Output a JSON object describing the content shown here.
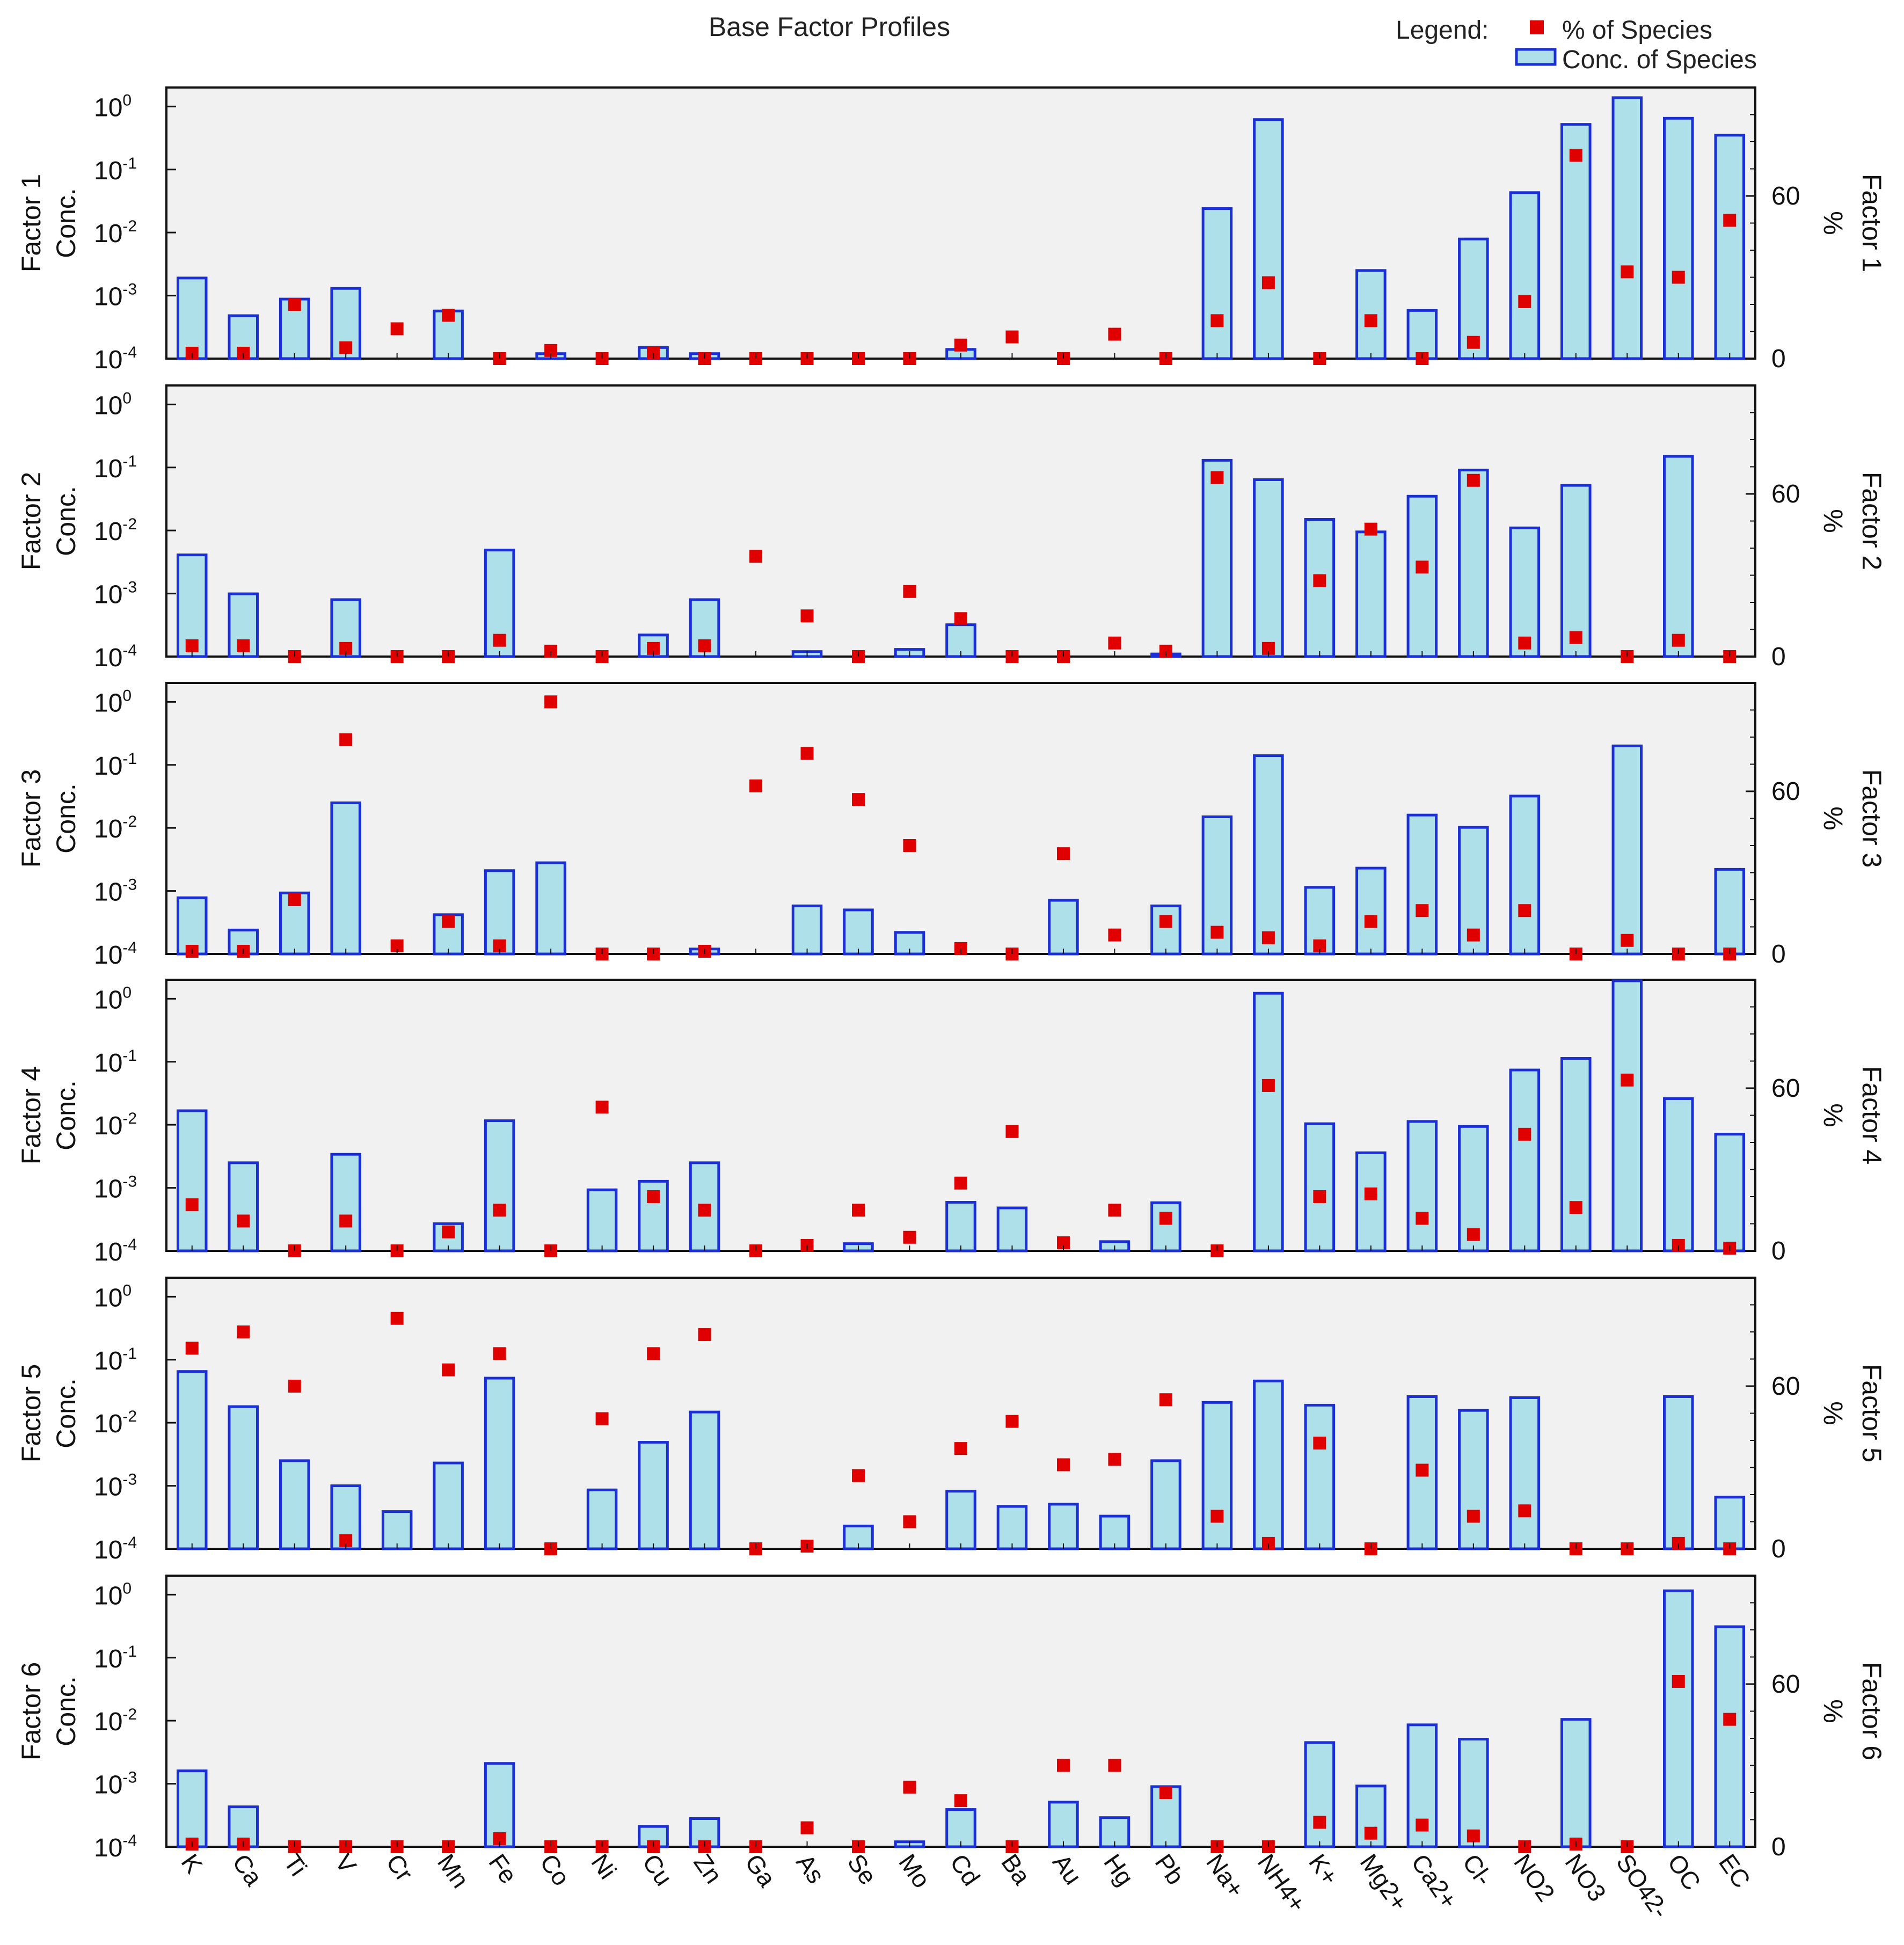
{
  "chart_data": {
    "type": "bar",
    "title": "Base Factor Profiles",
    "legend": {
      "title": "Legend:",
      "items": [
        {
          "label": "% of Species",
          "marker": "square",
          "color": "#e00000"
        },
        {
          "label": "Conc. of Species",
          "marker": "bar",
          "color": "#aee0ea",
          "edge": "#1a2fd6"
        }
      ],
      "position": "top-right"
    },
    "categories": [
      "K",
      "Ca",
      "Ti",
      "V",
      "Cr",
      "Mn",
      "Fe",
      "Co",
      "Ni",
      "Cu",
      "Zn",
      "Ga",
      "As",
      "Se",
      "Mo",
      "Cd",
      "Ba",
      "Au",
      "Hg",
      "Pb",
      "Na+",
      "NH4+",
      "K+",
      "Mg2+",
      "Ca2+",
      "Cl-",
      "NO2",
      "NO3",
      "SO42-",
      "OC",
      "EC"
    ],
    "left_axis": {
      "label": "Conc.",
      "scale": "log",
      "ylim": [
        0.0001,
        2.0
      ],
      "ticks": [
        {
          "base": "10",
          "exp": "-4"
        },
        {
          "base": "10",
          "exp": "-3"
        },
        {
          "base": "10",
          "exp": "-2"
        },
        {
          "base": "10",
          "exp": "-1"
        },
        {
          "base": "10",
          "exp": "0"
        }
      ]
    },
    "right_axis": {
      "label": "%",
      "ylim": [
        0,
        100
      ],
      "ticks": [
        "0",
        "60"
      ]
    },
    "panels": [
      {
        "name": "Factor 1",
        "conc": [
          0.0019,
          0.00048,
          0.00088,
          0.0013,
          null,
          0.00057,
          null,
          0.00012,
          null,
          0.00015,
          0.00012,
          null,
          null,
          null,
          null,
          0.00014,
          null,
          null,
          null,
          null,
          0.024,
          0.62,
          null,
          0.0025,
          0.00058,
          0.0079,
          0.043,
          0.52,
          1.38,
          0.65,
          0.35
        ],
        "pct": [
          2,
          2,
          20,
          4,
          11,
          16,
          0,
          3,
          0,
          2,
          0,
          0,
          0,
          0,
          0,
          5,
          8,
          0,
          9,
          0,
          14,
          28,
          0,
          14,
          0,
          6,
          21,
          75,
          32,
          30,
          51
        ]
      },
      {
        "name": "Factor 2",
        "conc": [
          0.0041,
          0.00099,
          null,
          0.0008,
          null,
          null,
          0.0049,
          null,
          null,
          0.00022,
          0.0008,
          null,
          0.00012,
          null,
          0.00013,
          0.00032,
          null,
          null,
          null,
          0.00011,
          0.13,
          0.064,
          0.015,
          0.0095,
          0.035,
          0.091,
          0.011,
          0.052,
          null,
          0.15,
          null
        ],
        "pct": [
          4,
          4,
          0,
          3,
          0,
          0,
          6,
          2,
          0,
          3,
          4,
          37,
          15,
          0,
          24,
          14,
          0,
          0,
          5,
          2,
          66,
          3,
          28,
          47,
          33,
          65,
          5,
          7,
          0,
          6,
          0
        ]
      },
      {
        "name": "Factor 3",
        "conc": [
          0.00078,
          0.00024,
          0.00093,
          0.025,
          null,
          0.00042,
          0.0021,
          0.0028,
          null,
          null,
          0.00012,
          null,
          0.00058,
          0.0005,
          0.00022,
          null,
          null,
          0.00071,
          null,
          0.00058,
          0.015,
          0.14,
          0.00114,
          0.0023,
          0.016,
          0.0102,
          0.032,
          null,
          0.2,
          null,
          0.0022
        ],
        "pct": [
          1,
          1,
          20,
          79,
          3,
          12,
          3,
          93,
          0,
          0,
          1,
          62,
          74,
          57,
          40,
          2,
          0,
          37,
          7,
          12,
          8,
          6,
          3,
          12,
          16,
          7,
          16,
          0,
          5,
          0,
          0
        ]
      },
      {
        "name": "Factor 4",
        "conc": [
          0.0167,
          0.0025,
          null,
          0.0034,
          null,
          0.00027,
          0.0116,
          null,
          0.00093,
          0.00127,
          0.0025,
          null,
          null,
          0.00013,
          null,
          0.00059,
          0.00048,
          null,
          0.00014,
          0.00058,
          null,
          1.22,
          0.0104,
          0.0036,
          0.0113,
          0.0094,
          0.074,
          0.113,
          2.35,
          0.026,
          0.0071
        ],
        "pct": [
          17,
          11,
          0,
          11,
          0,
          7,
          15,
          0,
          53,
          20,
          15,
          0,
          2,
          15,
          5,
          25,
          44,
          3,
          15,
          12,
          0,
          61,
          20,
          21,
          12,
          6,
          43,
          16,
          63,
          2,
          1
        ]
      },
      {
        "name": "Factor 5",
        "conc": [
          0.065,
          0.018,
          0.0025,
          0.001,
          0.00039,
          0.0023,
          0.051,
          null,
          0.00086,
          0.0049,
          0.0148,
          null,
          null,
          0.00023,
          null,
          0.00082,
          0.00047,
          0.00051,
          0.00033,
          0.0025,
          0.021,
          0.046,
          0.019,
          null,
          0.026,
          0.0157,
          0.025,
          null,
          null,
          0.026,
          0.00066
        ],
        "pct": [
          74,
          80,
          60,
          3,
          85,
          66,
          72,
          0,
          48,
          72,
          79,
          0,
          1,
          27,
          10,
          37,
          47,
          31,
          33,
          55,
          12,
          2,
          39,
          0,
          29,
          12,
          14,
          0,
          0,
          2,
          0
        ]
      },
      {
        "name": "Factor 6",
        "conc": [
          0.0016,
          0.00043,
          null,
          null,
          null,
          null,
          0.0021,
          null,
          null,
          0.00021,
          0.00028,
          null,
          null,
          null,
          0.00012,
          0.00039,
          null,
          0.00051,
          0.00029,
          0.0009,
          null,
          null,
          0.0045,
          0.00092,
          0.0086,
          0.0051,
          null,
          0.0105,
          null,
          1.15,
          0.31
        ],
        "pct": [
          1,
          1,
          0,
          0,
          0,
          0,
          3,
          0,
          0,
          0,
          0,
          0,
          7,
          0,
          22,
          17,
          0,
          30,
          30,
          20,
          0,
          0,
          9,
          5,
          8,
          4,
          0,
          1,
          0,
          61,
          47
        ]
      }
    ]
  }
}
